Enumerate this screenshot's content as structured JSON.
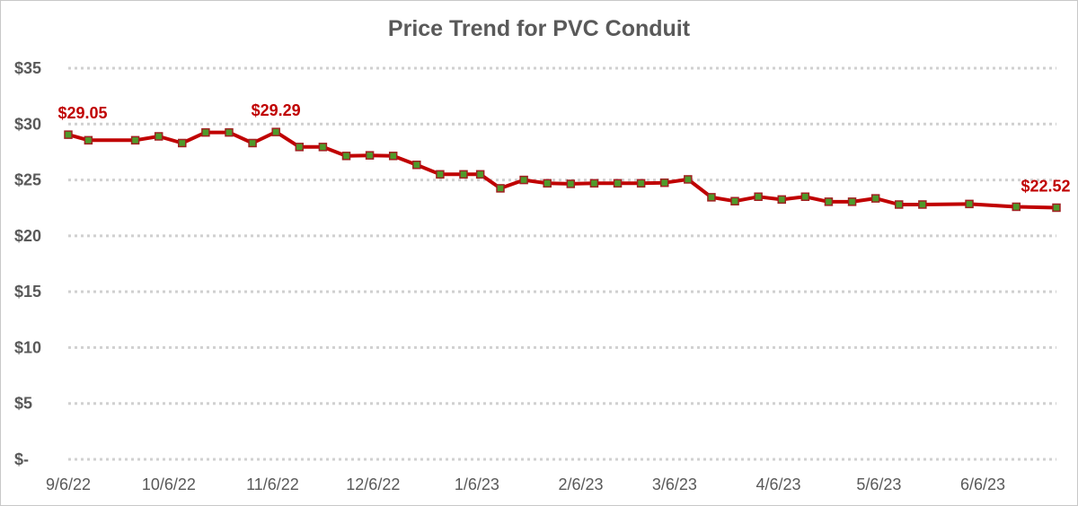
{
  "chart_data": {
    "type": "line",
    "title": "Price Trend for PVC Conduit",
    "xlabel": "",
    "ylabel": "",
    "ylim": [
      0,
      35
    ],
    "y_ticks": [
      {
        "value": 0,
        "label": "$-"
      },
      {
        "value": 5,
        "label": "$5"
      },
      {
        "value": 10,
        "label": "$10"
      },
      {
        "value": 15,
        "label": "$15"
      },
      {
        "value": 20,
        "label": "$20"
      },
      {
        "value": 25,
        "label": "$25"
      },
      {
        "value": 30,
        "label": "$30"
      },
      {
        "value": 35,
        "label": "$35"
      }
    ],
    "x_range": [
      "2022-09-06",
      "2023-06-28"
    ],
    "x_ticks": [
      {
        "date": "2022-09-06",
        "label": "9/6/22"
      },
      {
        "date": "2022-10-06",
        "label": "10/6/22"
      },
      {
        "date": "2022-11-06",
        "label": "11/6/22"
      },
      {
        "date": "2022-12-06",
        "label": "12/6/22"
      },
      {
        "date": "2023-01-06",
        "label": "1/6/23"
      },
      {
        "date": "2023-02-06",
        "label": "2/6/23"
      },
      {
        "date": "2023-03-06",
        "label": "3/6/23"
      },
      {
        "date": "2023-04-06",
        "label": "4/6/23"
      },
      {
        "date": "2023-05-06",
        "label": "5/6/23"
      },
      {
        "date": "2023-06-06",
        "label": "6/6/23"
      }
    ],
    "grid": "horizontal-dotted",
    "colors": {
      "line": "#c00000",
      "marker_fill": "#4f9a2a",
      "marker_edge": "#a02020",
      "label": "#c00000",
      "grid": "#d0d0d0"
    },
    "series": [
      {
        "points": [
          {
            "x": "2022-09-06",
            "y": 29.05
          },
          {
            "x": "2022-09-12",
            "y": 28.55
          },
          {
            "x": "2022-09-26",
            "y": 28.55
          },
          {
            "x": "2022-10-03",
            "y": 28.9
          },
          {
            "x": "2022-10-10",
            "y": 28.3
          },
          {
            "x": "2022-10-17",
            "y": 29.25
          },
          {
            "x": "2022-10-24",
            "y": 29.25
          },
          {
            "x": "2022-10-31",
            "y": 28.3
          },
          {
            "x": "2022-11-07",
            "y": 29.29
          },
          {
            "x": "2022-11-14",
            "y": 27.95
          },
          {
            "x": "2022-11-21",
            "y": 27.95
          },
          {
            "x": "2022-11-28",
            "y": 27.15
          },
          {
            "x": "2022-12-05",
            "y": 27.2
          },
          {
            "x": "2022-12-12",
            "y": 27.15
          },
          {
            "x": "2022-12-19",
            "y": 26.35
          },
          {
            "x": "2022-12-26",
            "y": 25.5
          },
          {
            "x": "2023-01-02",
            "y": 25.5
          },
          {
            "x": "2023-01-07",
            "y": 25.5
          },
          {
            "x": "2023-01-13",
            "y": 24.25
          },
          {
            "x": "2023-01-20",
            "y": 25.0
          },
          {
            "x": "2023-01-27",
            "y": 24.7
          },
          {
            "x": "2023-02-03",
            "y": 24.65
          },
          {
            "x": "2023-02-10",
            "y": 24.7
          },
          {
            "x": "2023-02-17",
            "y": 24.7
          },
          {
            "x": "2023-02-24",
            "y": 24.7
          },
          {
            "x": "2023-03-03",
            "y": 24.75
          },
          {
            "x": "2023-03-10",
            "y": 25.05
          },
          {
            "x": "2023-03-17",
            "y": 23.45
          },
          {
            "x": "2023-03-24",
            "y": 23.1
          },
          {
            "x": "2023-03-31",
            "y": 23.5
          },
          {
            "x": "2023-04-07",
            "y": 23.25
          },
          {
            "x": "2023-04-14",
            "y": 23.5
          },
          {
            "x": "2023-04-21",
            "y": 23.05
          },
          {
            "x": "2023-04-28",
            "y": 23.05
          },
          {
            "x": "2023-05-05",
            "y": 23.35
          },
          {
            "x": "2023-05-12",
            "y": 22.8
          },
          {
            "x": "2023-05-19",
            "y": 22.8
          },
          {
            "x": "2023-06-02",
            "y": 22.85
          },
          {
            "x": "2023-06-16",
            "y": 22.6
          },
          {
            "x": "2023-06-28",
            "y": 22.52
          }
        ]
      }
    ],
    "data_labels": [
      {
        "point_index": 0,
        "text": "$29.05",
        "anchor": "middle"
      },
      {
        "point_index": 8,
        "text": "$29.29",
        "anchor": "middle"
      },
      {
        "point_index": 39,
        "text": "$22.52",
        "anchor": "middle"
      }
    ]
  }
}
